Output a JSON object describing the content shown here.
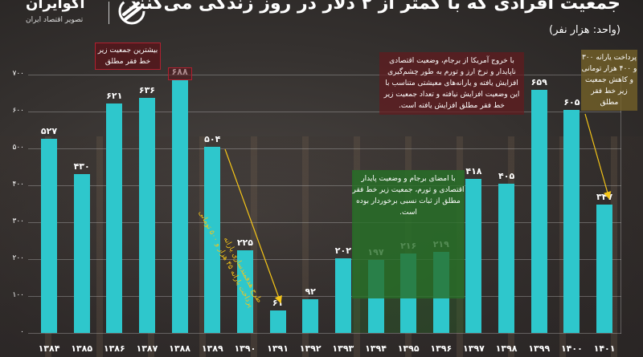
{
  "header": {
    "title": "جمعیت افرادی که با کمتر از ۲ دلار در روز زندگی می‌کنند",
    "unit": "(واحد: هزار نفر)"
  },
  "logo": {
    "name": "اکوایران",
    "subtitle": "تصویر اقتصاد ایران"
  },
  "colors": {
    "bar": "#2ec7cc",
    "note_red": "#b02030",
    "note_gold": "#8a7430",
    "note_green": "#2f7a2f",
    "arrow": "#f5c518"
  },
  "y_ticks": [
    "۰",
    "۱۰۰",
    "۲۰۰",
    "۳۰۰",
    "۴۰۰",
    "۵۰۰",
    "۶۰۰",
    "۷۰۰"
  ],
  "bars": [
    {
      "year": "۱۳۸۴",
      "label": "۵۲۷"
    },
    {
      "year": "۱۳۸۵",
      "label": "۴۳۰"
    },
    {
      "year": "۱۳۸۶",
      "label": "۶۲۱"
    },
    {
      "year": "۱۳۸۷",
      "label": "۶۳۶"
    },
    {
      "year": "۱۳۸۸",
      "label": "۶۸۸"
    },
    {
      "year": "۱۳۸۹",
      "label": "۵۰۴"
    },
    {
      "year": "۱۳۹۰",
      "label": "۲۲۵"
    },
    {
      "year": "۱۳۹۱",
      "label": "۶۱"
    },
    {
      "year": "۱۳۹۲",
      "label": "۹۲"
    },
    {
      "year": "۱۳۹۳",
      "label": "۲۰۲"
    },
    {
      "year": "۱۳۹۴",
      "label": "۱۹۷"
    },
    {
      "year": "۱۳۹۵",
      "label": "۲۱۶"
    },
    {
      "year": "۱۳۹۶",
      "label": "۲۱۹"
    },
    {
      "year": "۱۳۹۷",
      "label": "۴۱۸"
    },
    {
      "year": "۱۳۹۸",
      "label": "۴۰۵"
    },
    {
      "year": "۱۳۹۹",
      "label": "۶۵۹"
    },
    {
      "year": "۱۴۰۰",
      "label": "۶۰۵"
    },
    {
      "year": "۱۴۰۱",
      "label": "۳۴۷"
    }
  ],
  "annotations": {
    "max_note": "بیشترین جمعیت زیر خط فقر مطلق",
    "subsidy_arrow_line1": "طرح هدفمندسازی یارانه",
    "subsidy_arrow_line2": "پرداخت یارانه ۴۵ هزار و ۵۰۰ تومانی",
    "jcpoa_green": "با امضای برجام و وضعیت پایدار اقتصادی و تورم، جمعیت زیر خط فقر مطلق از ثبات نسبی برخوردار بوده است.",
    "us_exit_red": "با خروج آمریکا از برجام، وضعیت اقتصادی ناپایدار و نرخ ارز و تورم به طور چشم‌گیری افزایش یافته و یارانه‌های معیشتی متناسب با این وضعیت افزایش نیافته و تعداد جمعیت زیر خط فقر مطلق افزایش یافته است.",
    "gold_note": "پرداخت یارانه ۳۰۰ و ۴۰۰ هزار تومانی و کاهش جمعیت زیر خط فقر مطلق"
  },
  "chart_data": {
    "type": "bar",
    "title": "جمعیت افرادی که با کمتر از ۲ دلار در روز زندگی می‌کنند",
    "subtitle": "(واحد: هزار نفر)",
    "xlabel": "",
    "ylabel": "هزار نفر",
    "ylim": [
      0,
      700
    ],
    "yticks": [
      0,
      100,
      200,
      300,
      400,
      500,
      600,
      700
    ],
    "grid": true,
    "categories": [
      "1384",
      "1385",
      "1386",
      "1387",
      "1388",
      "1389",
      "1390",
      "1391",
      "1392",
      "1393",
      "1394",
      "1395",
      "1396",
      "1397",
      "1398",
      "1399",
      "1400",
      "1401"
    ],
    "values": [
      527,
      430,
      621,
      636,
      688,
      504,
      225,
      61,
      92,
      202,
      197,
      216,
      219,
      418,
      405,
      659,
      605,
      347
    ],
    "annotations": [
      "بیشترین جمعیت زیر خط فقر مطلق (1388: 688)",
      "طرح هدفمندسازی یارانه / پرداخت یارانه ۴۵ هزار و ۵۰۰ تومانی (1389→1391)",
      "با امضای برجام ... ثبات نسبی (1393–1396)",
      "با خروج آمریکا از برجام ... افزایش یافته است (1397–1400)",
      "پرداخت یارانه ۳۰۰ و ۴۰۰ هزار تومانی و کاهش جمعیت زیر خط فقر مطلق (1400→1401)"
    ]
  }
}
